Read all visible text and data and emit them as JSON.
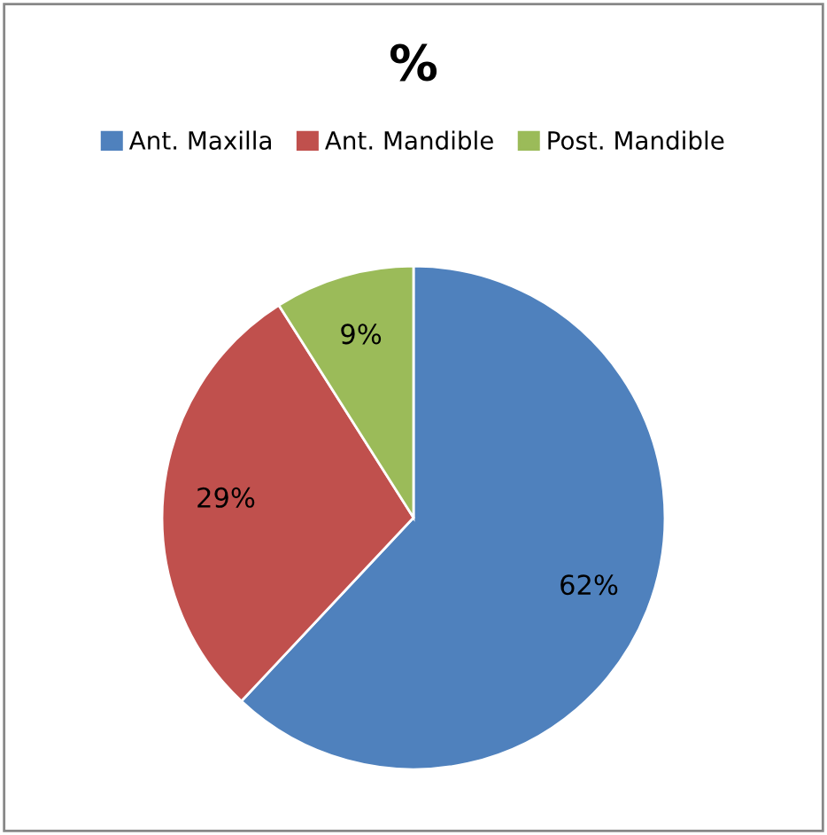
{
  "chart_data": {
    "type": "pie",
    "title": "%",
    "categories": [
      "Ant. Maxilla",
      "Ant. Mandible",
      "Post. Mandible"
    ],
    "values": [
      62,
      29,
      9
    ],
    "value_labels": [
      "62%",
      "29%",
      "9%"
    ],
    "colors": [
      "#4f81bd",
      "#c0504d",
      "#9bbb59"
    ],
    "legend": "top"
  }
}
